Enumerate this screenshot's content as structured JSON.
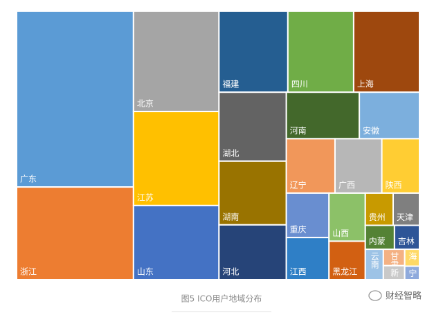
{
  "chart_data": {
    "type": "treemap",
    "title": "图5 ICO用户地域分布",
    "categories": [
      "广东",
      "浙江",
      "北京",
      "江苏",
      "山东",
      "福建",
      "四川",
      "上海",
      "湖北",
      "湖南",
      "河北",
      "河南",
      "安徽",
      "辽宁",
      "广西",
      "陕西",
      "重庆",
      "江西",
      "山西",
      "黑龙江",
      "贵州",
      "天津",
      "内蒙",
      "吉林",
      "云南",
      "甘肃",
      "新",
      "海",
      "宁"
    ],
    "values": [
      412,
      217,
      172,
      161,
      127,
      112,
      107,
      107,
      93,
      86,
      74,
      68,
      56,
      53,
      51,
      41,
      38,
      36,
      35,
      28,
      18,
      17,
      14,
      12,
      11,
      7,
      6,
      5,
      4
    ],
    "colors": [
      "#5b9bd5",
      "#ed7d31",
      "#a5a5a5",
      "#ffc000",
      "#4472c4",
      "#255e91",
      "#70ad47",
      "#9e480e",
      "#636363",
      "#997300",
      "#264478",
      "#43682b",
      "#7cafdd",
      "#f1975a",
      "#b7b7b7",
      "#ffcd33",
      "#698ed0",
      "#2f7fc6",
      "#8cc168",
      "#d26012",
      "#c89a00",
      "#7f7f7f",
      "#548235",
      "#2e5597",
      "#9dc3e6",
      "#f4b183",
      "#c9c9c9",
      "#ffd966",
      "#8faadc"
    ]
  },
  "watermark": "财经智略"
}
